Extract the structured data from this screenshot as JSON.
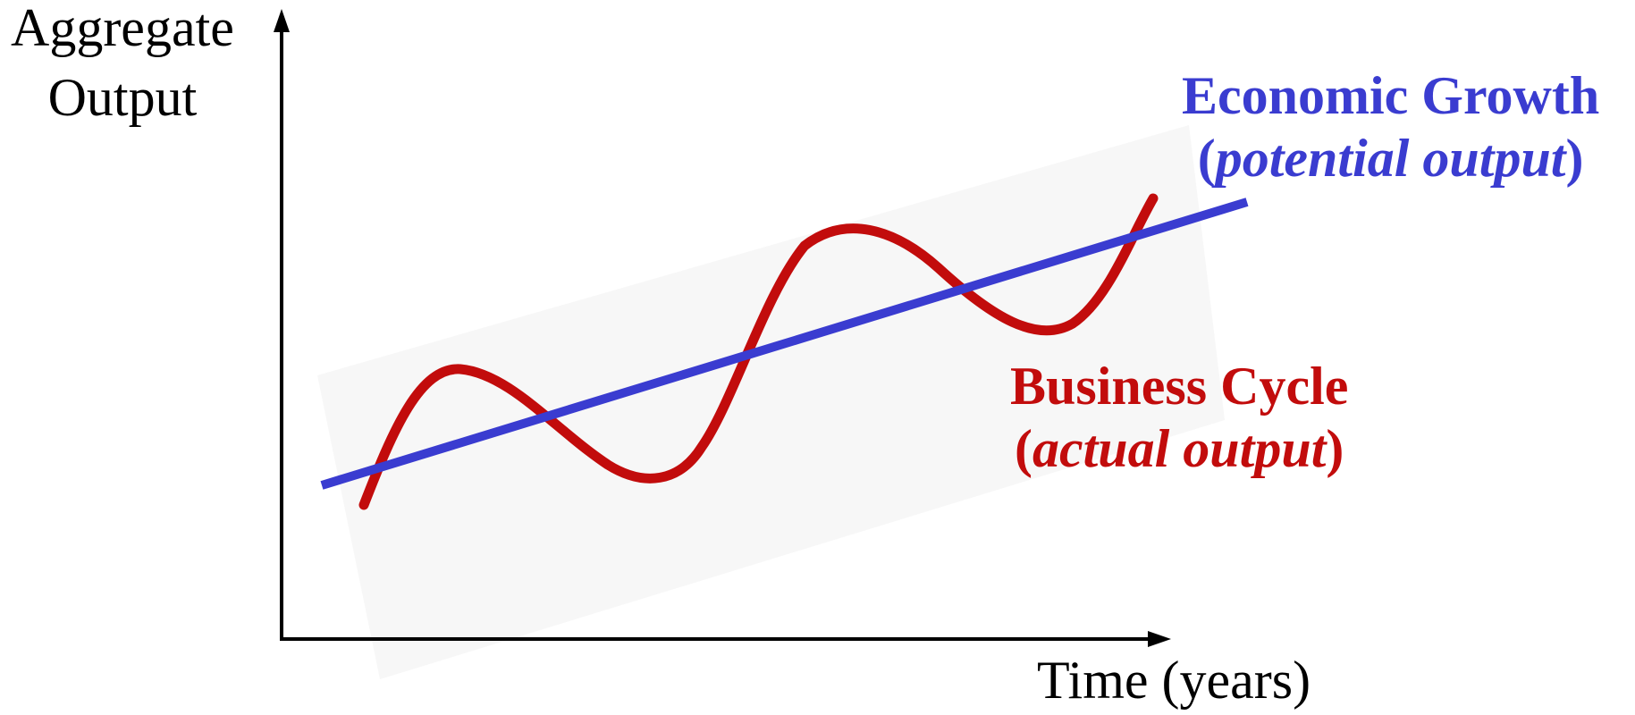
{
  "diagram": {
    "y_axis_label": [
      "Aggregate",
      "Output"
    ],
    "x_axis_label": "Time (years)",
    "growth": {
      "title": "Economic Growth",
      "sub_prefix": "(",
      "sub_italic": "potential output",
      "sub_suffix": ")",
      "color": "#3a3cd0"
    },
    "cycle": {
      "title": "Business Cycle",
      "sub_prefix": "(",
      "sub_italic": "actual output",
      "sub_suffix": ")",
      "color": "#c20c0c"
    },
    "axis_color": "#000000"
  }
}
